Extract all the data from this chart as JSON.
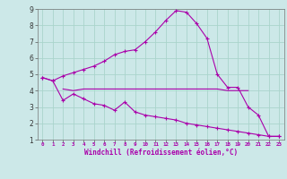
{
  "xlabel": "Windchill (Refroidissement éolien,°C)",
  "background_color": "#cce8e8",
  "grid_color": "#aad4cc",
  "line_color": "#aa00aa",
  "xlim": [
    -0.5,
    23.5
  ],
  "ylim": [
    1,
    9
  ],
  "xticks": [
    0,
    1,
    2,
    3,
    4,
    5,
    6,
    7,
    8,
    9,
    10,
    11,
    12,
    13,
    14,
    15,
    16,
    17,
    18,
    19,
    20,
    21,
    22,
    23
  ],
  "yticks": [
    1,
    2,
    3,
    4,
    5,
    6,
    7,
    8,
    9
  ],
  "line1_x": [
    0,
    1,
    2,
    3,
    4,
    5,
    6,
    7,
    8,
    9,
    10,
    11,
    12,
    13,
    14,
    15,
    16,
    17,
    18,
    19,
    20,
    21,
    22,
    23
  ],
  "line1_y": [
    4.8,
    4.6,
    4.9,
    5.1,
    5.3,
    5.5,
    5.8,
    6.2,
    6.4,
    6.5,
    7.0,
    7.6,
    8.3,
    8.9,
    8.8,
    8.1,
    7.2,
    5.0,
    4.2,
    4.2,
    3.0,
    2.5,
    1.2,
    1.2
  ],
  "line2_x": [
    2,
    3,
    4,
    5,
    6,
    7,
    8,
    9,
    10,
    11,
    12,
    13,
    14,
    15,
    16,
    17,
    18,
    19,
    20
  ],
  "line2_y": [
    4.1,
    4.0,
    4.1,
    4.1,
    4.1,
    4.1,
    4.1,
    4.1,
    4.1,
    4.1,
    4.1,
    4.1,
    4.1,
    4.1,
    4.1,
    4.1,
    4.0,
    4.0,
    4.0
  ],
  "line3_x": [
    0,
    1,
    2,
    3,
    4,
    5,
    6,
    7,
    8,
    9,
    10,
    11,
    12,
    13,
    14,
    15,
    16,
    17,
    18,
    19,
    20,
    21,
    22,
    23
  ],
  "line3_y": [
    4.8,
    4.6,
    3.4,
    3.8,
    3.5,
    3.2,
    3.1,
    2.8,
    3.3,
    2.7,
    2.5,
    2.4,
    2.3,
    2.2,
    2.0,
    1.9,
    1.8,
    1.7,
    1.6,
    1.5,
    1.4,
    1.3,
    1.2,
    1.2
  ]
}
